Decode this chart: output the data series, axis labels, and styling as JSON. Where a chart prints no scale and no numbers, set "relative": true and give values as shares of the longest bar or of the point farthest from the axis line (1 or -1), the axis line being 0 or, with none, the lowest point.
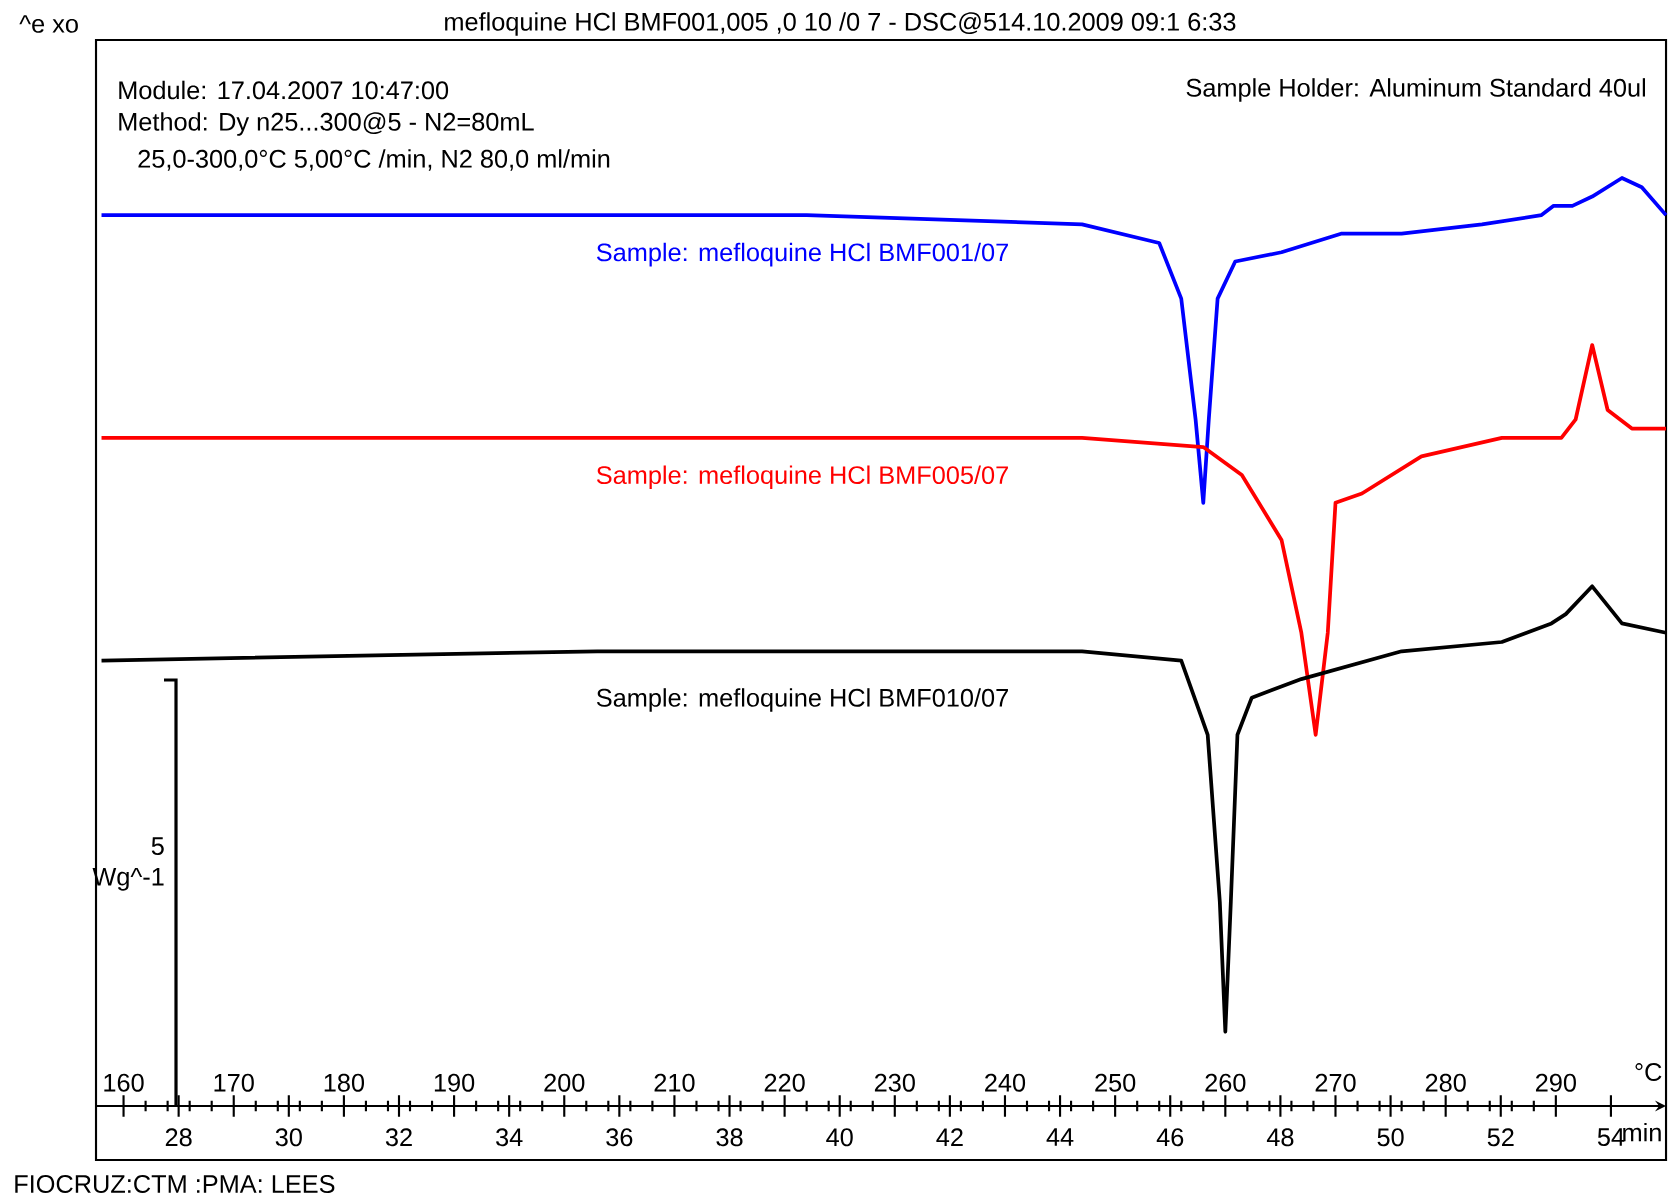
{
  "chart_data": {
    "type": "line",
    "relative": true,
    "title": "mefloquine  HCl BMF001,005 ,0 10 /0 7 - DSC@514.10.2009  09:1 6:33",
    "annotations": [
      "^e xo",
      "Module: 17.04.2007 10:47:00",
      "Method: Dy  n25...300@5 - N2=80mL",
      "25,0-300,0°C 5,00°C  /min, N2 80,0 ml/min",
      "Sample Holder: Aluminum Standard 40ul",
      "FIOCRUZ:CTM :PMA: LEES",
      "5 Wg^-1"
    ],
    "xlabel": "°C",
    "x2label": "min",
    "xlim": [
      157.5,
      300
    ],
    "xticks": [
      160,
      170,
      180,
      190,
      200,
      210,
      220,
      230,
      240,
      250,
      260,
      270,
      280,
      290
    ],
    "x2lim": [
      26.5,
      55
    ],
    "x2ticks": [
      28,
      30,
      32,
      34,
      36,
      38,
      40,
      42,
      44,
      46,
      48,
      50,
      52,
      54
    ],
    "series": [
      {
        "name": "Sample: mefloquine HCl BMF001/07",
        "color": "#0000ff",
        "x": [
          158,
          185,
          203,
          222,
          247,
          254,
          256,
          257.3,
          258,
          258.5,
          259.3,
          260.9,
          265.1,
          270.5,
          276,
          283.3,
          288.7,
          289.8,
          291.5,
          293.3,
          296,
          297.8,
          300
        ],
        "values": [
          0.96,
          0.96,
          0.96,
          0.96,
          0.95,
          0.93,
          0.87,
          0.74,
          0.65,
          0.74,
          0.87,
          0.91,
          0.92,
          0.94,
          0.94,
          0.95,
          0.96,
          0.97,
          0.97,
          0.98,
          1.0,
          0.99,
          0.96
        ]
      },
      {
        "name": "Sample: mefloquine HCl BMF005/07",
        "color": "#ff0000",
        "x": [
          158,
          203,
          232,
          247,
          258,
          261.5,
          265.1,
          266.9,
          268.2,
          269.3,
          270,
          272.4,
          277.8,
          285.1,
          290.5,
          291.8,
          293.3,
          294.7,
          296.9,
          300
        ],
        "values": [
          0.72,
          0.72,
          0.72,
          0.72,
          0.71,
          0.68,
          0.61,
          0.51,
          0.4,
          0.51,
          0.65,
          0.66,
          0.7,
          0.72,
          0.72,
          0.74,
          0.82,
          0.75,
          0.73,
          0.73
        ]
      },
      {
        "name": "Sample: mefloquine HCl BMF010/07",
        "color": "#000000",
        "x": [
          158,
          203,
          247,
          256,
          257.8,
          258.4,
          259.5,
          260,
          260.5,
          261.1,
          262.4,
          266.9,
          276,
          285.1,
          289.6,
          290.9,
          293.3,
          296,
          300
        ],
        "values": [
          0.48,
          0.49,
          0.49,
          0.48,
          0.42,
          0.4,
          0.22,
          0.08,
          0.22,
          0.4,
          0.44,
          0.46,
          0.49,
          0.5,
          0.52,
          0.53,
          0.56,
          0.52,
          0.51
        ]
      }
    ]
  }
}
